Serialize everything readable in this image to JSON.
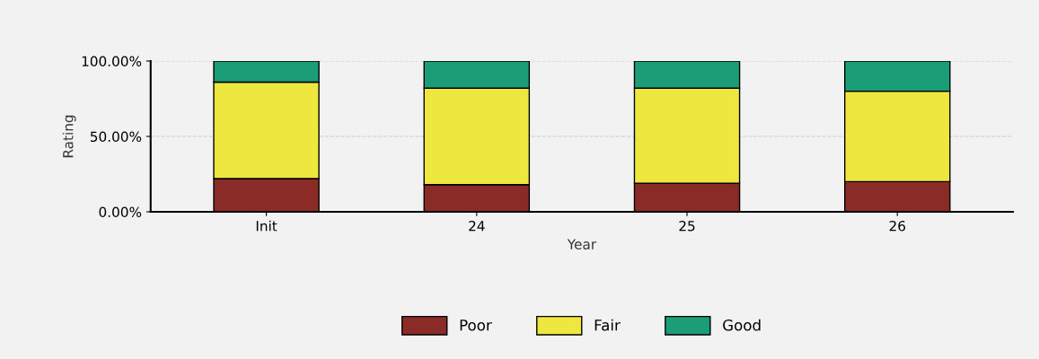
{
  "chart_data": {
    "type": "bar",
    "stacked": true,
    "xlabel": "Year",
    "ylabel": "Rating",
    "categories": [
      "Init",
      "24",
      "25",
      "26"
    ],
    "series": [
      {
        "name": "Poor",
        "color": "#8b2b27",
        "values": [
          22,
          18,
          19,
          20
        ]
      },
      {
        "name": "Fair",
        "color": "#ede73f",
        "values": [
          64,
          64,
          63,
          60
        ]
      },
      {
        "name": "Good",
        "color": "#1b9e77",
        "values": [
          14,
          18,
          18,
          20
        ]
      }
    ],
    "ylim": [
      0,
      100
    ],
    "yticks": [
      {
        "value": 0,
        "label": "0.00%"
      },
      {
        "value": 50,
        "label": "50.00%"
      },
      {
        "value": 100,
        "label": "100.00%"
      }
    ],
    "grid": "y",
    "legend": "bottom"
  }
}
